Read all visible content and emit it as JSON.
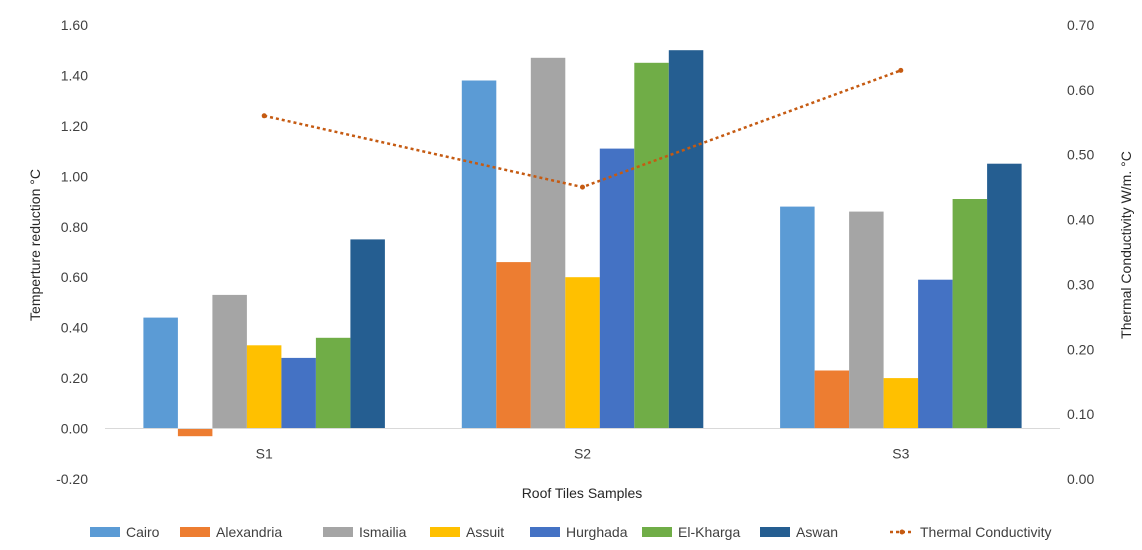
{
  "chart_data": {
    "type": "bar",
    "categories": [
      "S1",
      "S2",
      "S3"
    ],
    "series": [
      {
        "name": "Cairo",
        "color": "#5B9BD5",
        "values": [
          0.44,
          1.38,
          0.88
        ]
      },
      {
        "name": "Alexandria",
        "color": "#ED7D31",
        "values": [
          -0.03,
          0.66,
          0.23
        ]
      },
      {
        "name": "Ismailia",
        "color": "#A5A5A5",
        "values": [
          0.53,
          1.47,
          0.86
        ]
      },
      {
        "name": "Assuit",
        "color": "#FFC000",
        "values": [
          0.33,
          0.6,
          0.2
        ]
      },
      {
        "name": "Hurghada",
        "color": "#4472C4",
        "values": [
          0.28,
          1.11,
          0.59
        ]
      },
      {
        "name": "El-Kharga",
        "color": "#70AD47",
        "values": [
          0.36,
          1.45,
          0.91
        ]
      },
      {
        "name": "Aswan",
        "color": "#255E91",
        "values": [
          0.75,
          1.5,
          1.05
        ]
      }
    ],
    "line_series": {
      "name": "Thermal Conductivity",
      "color": "#C55A11",
      "values": [
        0.56,
        0.45,
        0.63
      ]
    },
    "xlabel": "Roof Tiles Samples",
    "ylabel": "Temperture reduction °C",
    "y2label": "Thermal Conductivity W/m. °C",
    "ylim": [
      -0.2,
      1.6
    ],
    "y_ticks": [
      "1.60",
      "1.40",
      "1.20",
      "1.00",
      "0.80",
      "0.60",
      "0.40",
      "0.20",
      "0.00",
      "-0.20"
    ],
    "y2lim": [
      0.0,
      0.7
    ],
    "y2_ticks": [
      "0.70",
      "0.60",
      "0.50",
      "0.40",
      "0.30",
      "0.20",
      "0.10",
      "0.00"
    ],
    "grid": false,
    "legend_position": "bottom"
  }
}
